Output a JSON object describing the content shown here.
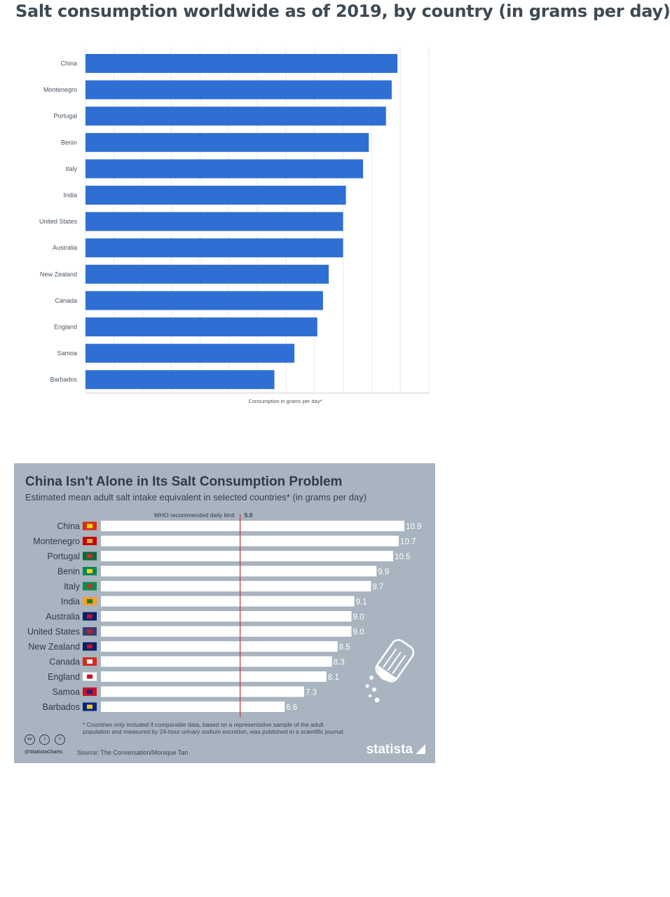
{
  "top": {
    "title": "Salt consumption worldwide as of 2019, by country (in grams per day)"
  },
  "bottom": {
    "title": "China Isn't Alone in Its Salt Consumption Problem",
    "subtitle": "Estimated mean adult salt intake equivalent in selected countries* (in grams per day)",
    "who_label": "WHO recommended daily limit",
    "who_value": "5.0",
    "footnote": "* Countries only included if comparable data, based on a representative sample of the adult population and measured by 24-hour urinary sodium excretion, was published in a scientific journal.",
    "source": "Source: The Conversation/Monique Tan",
    "handle": "@StatistaCharts",
    "brand": "statista"
  },
  "chart_data": [
    {
      "type": "bar",
      "orientation": "horizontal",
      "title": "Salt consumption worldwide as of 2019, by country (in grams per day)",
      "xlabel": "Consumption in grams per day*",
      "ylabel": "",
      "categories": [
        "China",
        "Montenegro",
        "Portugal",
        "Benin",
        "Italy",
        "India",
        "United States",
        "Australia",
        "New Zealand",
        "Canada",
        "England",
        "Samoa",
        "Barbados"
      ],
      "values": [
        10.9,
        10.7,
        10.5,
        9.9,
        9.7,
        9.1,
        9.0,
        9.0,
        8.5,
        8.3,
        8.1,
        7.3,
        6.6
      ],
      "xlim": [
        0,
        12
      ],
      "bar_color": "#2f6fd4",
      "grid": true
    },
    {
      "type": "bar",
      "orientation": "horizontal",
      "title": "China Isn't Alone in Its Salt Consumption Problem",
      "subtitle": "Estimated mean adult salt intake equivalent in selected countries* (in grams per day)",
      "categories": [
        "China",
        "Montenegro",
        "Portugal",
        "Benin",
        "Italy",
        "India",
        "Australia",
        "United States",
        "New Zealand",
        "Canada",
        "England",
        "Samoa",
        "Barbados"
      ],
      "values": [
        10.9,
        10.7,
        10.5,
        9.9,
        9.7,
        9.1,
        9.0,
        9.0,
        8.5,
        8.3,
        8.1,
        7.3,
        6.6
      ],
      "value_labels": [
        "10.9",
        "10.7",
        "10.5",
        "9.9",
        "9.7",
        "9.1",
        "9.0",
        "9.0",
        "8.5",
        "8.3",
        "8.1",
        "7.3",
        "6.6"
      ],
      "reference_line": {
        "label": "WHO recommended daily limit",
        "value": 5.0
      },
      "xlim": [
        0,
        10.9
      ],
      "bar_color": "#ffffff",
      "background": "#a8b4c0",
      "flags": [
        "china-flag-icon",
        "montenegro-flag-icon",
        "portugal-flag-icon",
        "benin-flag-icon",
        "italy-flag-icon",
        "india-flag-icon",
        "australia-flag-icon",
        "united-states-flag-icon",
        "new-zealand-flag-icon",
        "canada-flag-icon",
        "england-flag-icon",
        "samoa-flag-icon",
        "barbados-flag-icon"
      ]
    }
  ]
}
